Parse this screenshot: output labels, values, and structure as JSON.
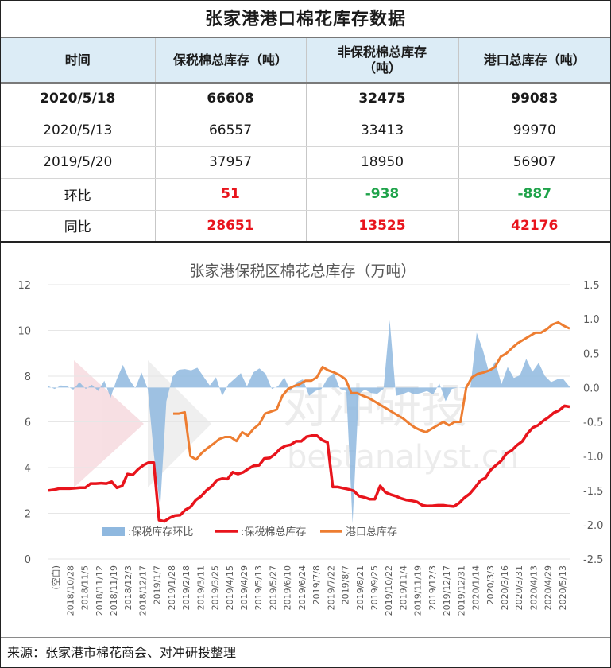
{
  "title": "张家港港口棉花库存数据",
  "table": {
    "headers": [
      "时间",
      "保税棉总库存（吨）",
      "非保税棉总库存\n（吨）",
      "港口总库存（吨）"
    ],
    "rows": [
      {
        "time": "2020/5/18",
        "bonded": "66608",
        "nonbonded": "32475",
        "total": "99083"
      },
      {
        "time": "2020/5/13",
        "bonded": "66557",
        "nonbonded": "33413",
        "total": "99970"
      },
      {
        "time": "2019/5/20",
        "bonded": "37957",
        "nonbonded": "18950",
        "total": "56907"
      },
      {
        "time": "环比",
        "bonded": "51",
        "nonbonded": "-938",
        "total": "-887"
      },
      {
        "time": "同比",
        "bonded": "28651",
        "nonbonded": "13525",
        "total": "42176"
      }
    ]
  },
  "colors": {
    "red": "#e8141c",
    "green": "#1fa34a",
    "header_bg": "#dcecf6"
  },
  "chart_data": {
    "type": "line",
    "title": "张家港保税区棉花总库存（万吨）",
    "x_labels": [
      "(空白)",
      "2018/10/28",
      "2018/11/5",
      "2018/11/12",
      "2018/11/19",
      "2018/12/3",
      "2018/12/17",
      "2019/1/7",
      "2019/1/28",
      "2019/2/18",
      "2019/3/11",
      "2019/3/25",
      "2019/4/15",
      "2019/4/29",
      "2019/5/13",
      "2019/5/27",
      "2019/6/10",
      "2019/6/24",
      "2019/7/8",
      "2019/7/22",
      "2019/8/7",
      "2019/8/21",
      "2019/9/25",
      "2019/10/22",
      "2019/11/4",
      "2019/11/19",
      "2019/12/3",
      "2019/12/17",
      "2019/12/31",
      "2020/1/14",
      "2020/3/3",
      "2020/3/16",
      "2020/3/31",
      "2020/4/13",
      "2020/4/29",
      "2020/5/13"
    ],
    "left_axis": {
      "ylim": [
        0,
        12
      ],
      "ticks": [
        "0",
        "2",
        "4",
        "6",
        "8",
        "10",
        "12"
      ]
    },
    "right_axis": {
      "ylim": [
        -2.5,
        1.5
      ],
      "ticks": [
        "-2.5",
        "-2.0",
        "-1.5",
        "-1.0",
        "-0.5",
        "0.0",
        "0.5",
        "1.0",
        "1.5"
      ]
    },
    "legend_position": "bottom",
    "series": [
      {
        "name": ":保税库存环比",
        "type": "area",
        "axis": "right",
        "color": "#8fb8df",
        "values": [
          0.02,
          -0.02,
          0.03,
          0.02,
          -0.03,
          0.08,
          -0.02,
          0.04,
          -0.05,
          0.1,
          -0.15,
          0.12,
          0.33,
          0.12,
          -0.01,
          0.22,
          -0.02,
          -0.99,
          -1.75,
          -0.2,
          0.16,
          0.26,
          0.27,
          0.25,
          0.29,
          0.16,
          0.03,
          0.15,
          -0.12,
          0.05,
          0.13,
          0.21,
          0.02,
          0.22,
          0.28,
          0.2,
          -0.02,
          0.02,
          0.15,
          -0.05,
          0.08,
          0.12,
          -0.12,
          -0.05,
          -0.02,
          0.14,
          0.21,
          -0.02,
          -0.05,
          -1.98,
          -0.09,
          -0.03,
          -0.08,
          -0.09,
          -0.02,
          0.98,
          -0.12,
          -0.1,
          -0.06,
          -0.1,
          -0.08,
          -0.05,
          -0.1,
          0.06,
          -0.2,
          -0.02,
          0.0,
          -0.01,
          0.0,
          0.8,
          0.55,
          0.22,
          0.38,
          0.05,
          0.3,
          0.14,
          0.18,
          0.42,
          0.23,
          0.36,
          0.17,
          0.08,
          0.12,
          0.12,
          0.01
        ]
      },
      {
        "name": ":保税棉总库存",
        "type": "line",
        "axis": "left",
        "color": "#e8141c",
        "values": [
          3.0,
          3.03,
          3.08,
          3.08,
          3.08,
          3.1,
          3.12,
          3.12,
          3.3,
          3.3,
          3.32,
          3.3,
          3.38,
          3.12,
          3.2,
          3.72,
          3.68,
          3.92,
          4.1,
          4.22,
          4.22,
          1.7,
          1.65,
          1.8,
          1.9,
          1.92,
          2.15,
          2.28,
          2.58,
          2.75,
          3.0,
          3.18,
          3.45,
          3.52,
          3.5,
          3.8,
          3.72,
          3.8,
          3.95,
          4.08,
          4.1,
          4.4,
          4.42,
          4.58,
          4.82,
          4.95,
          5.0,
          5.15,
          5.15,
          5.35,
          5.4,
          5.4,
          5.2,
          5.1,
          3.15,
          3.15,
          3.1,
          3.05,
          2.98,
          2.75,
          2.7,
          2.62,
          2.62,
          3.2,
          2.92,
          2.82,
          2.75,
          2.65,
          2.58,
          2.55,
          2.5,
          2.35,
          2.32,
          2.33,
          2.35,
          2.35,
          2.32,
          2.3,
          2.45,
          2.68,
          2.85,
          3.12,
          3.43,
          3.55,
          3.9,
          4.1,
          4.3,
          4.62,
          4.75,
          4.98,
          5.15,
          5.5,
          5.75,
          5.85,
          6.05,
          6.2,
          6.4,
          6.5,
          6.7,
          6.66
        ]
      },
      {
        "name": "港口总库存",
        "type": "line",
        "axis": "right",
        "color": "#ed7d31",
        "values": [
          -0.38,
          -0.38,
          -0.36,
          -1.0,
          -1.05,
          -0.95,
          -0.88,
          -0.82,
          -0.75,
          -0.72,
          -0.72,
          -0.78,
          -0.65,
          -0.7,
          -0.6,
          -0.53,
          -0.38,
          -0.35,
          -0.32,
          -0.12,
          -0.02,
          0.02,
          0.05,
          0.1,
          0.1,
          0.15,
          0.3,
          0.25,
          0.22,
          0.18,
          0.12,
          -0.08,
          -0.08,
          -0.12,
          -0.15,
          -0.2,
          -0.25,
          -0.3,
          -0.35,
          -0.4,
          -0.45,
          -0.52,
          -0.58,
          -0.62,
          -0.65,
          -0.6,
          -0.55,
          -0.5,
          -0.55,
          -0.5,
          -0.5,
          0.0,
          0.15,
          0.2,
          0.22,
          0.25,
          0.3,
          0.45,
          0.5,
          0.58,
          0.65,
          0.7,
          0.75,
          0.8,
          0.8,
          0.85,
          0.92,
          0.95,
          0.9,
          0.86
        ]
      }
    ]
  },
  "watermark": {
    "cn": "对冲研投",
    "en": "bestanalyst.cn"
  },
  "footer": "来源：张家港市棉花商会、对冲研投整理"
}
